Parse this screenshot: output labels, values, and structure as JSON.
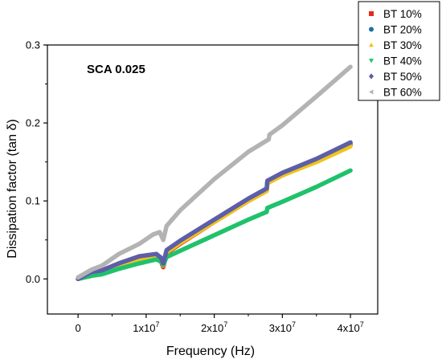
{
  "chart_data": {
    "type": "line",
    "title": "",
    "annotation": "SCA 0.025",
    "xlabel": "Frequency (Hz)",
    "ylabel": "Dissipation factor (tan δ)",
    "xlim": [
      -4500000,
      44000000
    ],
    "ylim": [
      -0.045,
      0.3
    ],
    "x_ticks": [
      {
        "value": 0,
        "mant": "0",
        "exp": ""
      },
      {
        "value": 10000000,
        "mant": "1x10",
        "exp": "7"
      },
      {
        "value": 20000000,
        "mant": "2x10",
        "exp": "7"
      },
      {
        "value": 30000000,
        "mant": "3x10",
        "exp": "7"
      },
      {
        "value": 40000000,
        "mant": "4x10",
        "exp": "7"
      }
    ],
    "y_ticks": [
      {
        "value": 0.0,
        "label": "0.0"
      },
      {
        "value": 0.1,
        "label": "0.1"
      },
      {
        "value": 0.2,
        "label": "0.2"
      },
      {
        "value": 0.3,
        "label": "0.3"
      }
    ],
    "grid": false,
    "legend_position": "top-right",
    "series": [
      {
        "name": "BT 10%",
        "color": "#e8291c",
        "marker": "square",
        "x": [
          0,
          2000000,
          3500000,
          6000000,
          9000000,
          11500000,
          12200000,
          12500000,
          13000000,
          15000000,
          20000000,
          25000000,
          27700000,
          27800000,
          30000000,
          35000000,
          40000000
        ],
        "y": [
          0.0,
          0.006,
          0.008,
          0.016,
          0.024,
          0.027,
          0.022,
          0.015,
          0.033,
          0.045,
          0.073,
          0.1,
          0.113,
          0.123,
          0.133,
          0.151,
          0.172
        ]
      },
      {
        "name": "BT 20%",
        "color": "#1b6fa8",
        "marker": "circle",
        "x": [
          0,
          2000000,
          3500000,
          6000000,
          9000000,
          11500000,
          12200000,
          12500000,
          13000000,
          15000000,
          20000000,
          25000000,
          27700000,
          27800000,
          30000000,
          35000000,
          40000000
        ],
        "y": [
          0.0,
          0.008,
          0.01,
          0.018,
          0.026,
          0.029,
          0.024,
          0.018,
          0.035,
          0.047,
          0.075,
          0.102,
          0.115,
          0.125,
          0.135,
          0.153,
          0.174
        ]
      },
      {
        "name": "BT 30%",
        "color": "#f0c419",
        "marker": "triangle",
        "x": [
          0,
          2000000,
          3500000,
          6000000,
          9000000,
          11500000,
          12200000,
          12500000,
          13000000,
          15000000,
          20000000,
          25000000,
          27700000,
          27800000,
          30000000,
          35000000,
          40000000
        ],
        "y": [
          0.0,
          0.007,
          0.009,
          0.017,
          0.025,
          0.028,
          0.023,
          0.017,
          0.034,
          0.046,
          0.073,
          0.1,
          0.113,
          0.123,
          0.133,
          0.15,
          0.17
        ]
      },
      {
        "name": "BT 40%",
        "color": "#1fc26b",
        "marker": "triangle-down",
        "x": [
          0,
          2000000,
          3500000,
          6000000,
          9000000,
          11500000,
          12200000,
          12500000,
          13000000,
          15000000,
          20000000,
          25000000,
          27700000,
          27800000,
          30000000,
          35000000,
          40000000
        ],
        "y": [
          0.0,
          0.004,
          0.006,
          0.013,
          0.02,
          0.025,
          0.022,
          0.018,
          0.028,
          0.036,
          0.056,
          0.076,
          0.086,
          0.091,
          0.099,
          0.118,
          0.139
        ]
      },
      {
        "name": "BT 50%",
        "color": "#5d5ea8",
        "marker": "diamond",
        "x": [
          0,
          2000000,
          3500000,
          6000000,
          9000000,
          11500000,
          12200000,
          12500000,
          13000000,
          15000000,
          20000000,
          25000000,
          27700000,
          27800000,
          30000000,
          35000000,
          40000000
        ],
        "y": [
          0.0,
          0.009,
          0.011,
          0.02,
          0.029,
          0.032,
          0.027,
          0.02,
          0.037,
          0.049,
          0.076,
          0.103,
          0.116,
          0.126,
          0.136,
          0.154,
          0.175
        ]
      },
      {
        "name": "BT 60%",
        "color": "#b3b3b3",
        "marker": "triangle-left",
        "x": [
          0,
          2000000,
          3500000,
          6000000,
          9000000,
          11000000,
          12000000,
          12500000,
          13000000,
          15000000,
          20000000,
          25000000,
          28000000,
          28100000,
          30000000,
          35000000,
          40000000
        ],
        "y": [
          0.002,
          0.012,
          0.017,
          0.032,
          0.045,
          0.057,
          0.06,
          0.05,
          0.068,
          0.088,
          0.128,
          0.163,
          0.179,
          0.185,
          0.197,
          0.234,
          0.272
        ]
      }
    ]
  }
}
